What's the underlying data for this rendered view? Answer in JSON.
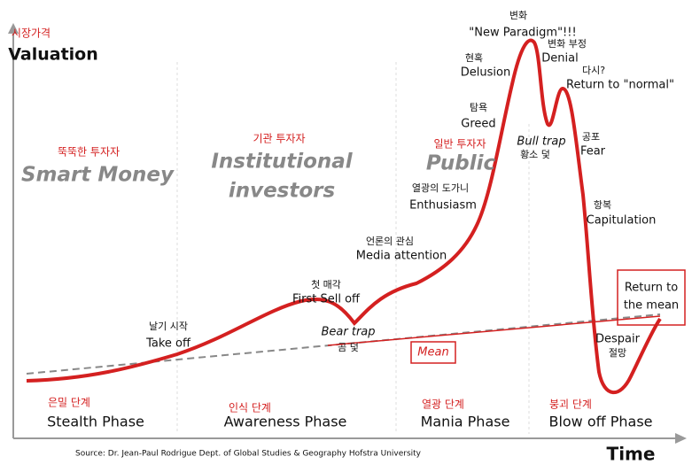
{
  "axes": {
    "y_korean": "시장가격",
    "y": "Valuation",
    "x": "Time"
  },
  "groups": [
    {
      "korean": "뚝뚝한 투자자",
      "lines": [
        "Smart Money"
      ]
    },
    {
      "korean": "기관 투자자",
      "lines": [
        "Institutional",
        "investors"
      ]
    },
    {
      "korean": "일반 투자자",
      "lines": [
        "Public"
      ]
    }
  ],
  "phases": [
    {
      "korean": "은밀 단계",
      "name": "Stealth Phase"
    },
    {
      "korean": "인식 단계",
      "name": "Awareness Phase"
    },
    {
      "korean": "열광 단계",
      "name": "Mania Phase"
    },
    {
      "korean": "붕괴 단계",
      "name": "Blow off Phase"
    }
  ],
  "annotations": [
    {
      "korean": "날기 시작",
      "label": "Take off"
    },
    {
      "korean": "첫 매각",
      "label": "First Sell off"
    },
    {
      "korean": "곰 덫",
      "label": "Bear trap"
    },
    {
      "korean": "언론의 관심",
      "label": "Media attention"
    },
    {
      "korean": "열광의 도가니",
      "label": "Enthusiasm"
    },
    {
      "korean": "탐욕",
      "label": "Greed"
    },
    {
      "korean": "현혹",
      "label": "Delusion"
    },
    {
      "korean": "변화",
      "label": "\"New Paradigm\"!!!"
    },
    {
      "korean": "변화 부정",
      "label": "Denial"
    },
    {
      "korean": "황소 덫",
      "label": "Bull trap"
    },
    {
      "korean": "다시?",
      "label": "Return to \"normal\""
    },
    {
      "korean": "공포",
      "label": "Fear"
    },
    {
      "korean": "항복",
      "label": "Capitulation"
    },
    {
      "korean": "절망",
      "label": "Despair"
    }
  ],
  "return_to_mean": [
    "Return to",
    "the mean"
  ],
  "mean": "Mean",
  "source": "Source: Dr. Jean-Paul Rodrigue Dept. of Global Studies & Geography Hofstra University"
}
